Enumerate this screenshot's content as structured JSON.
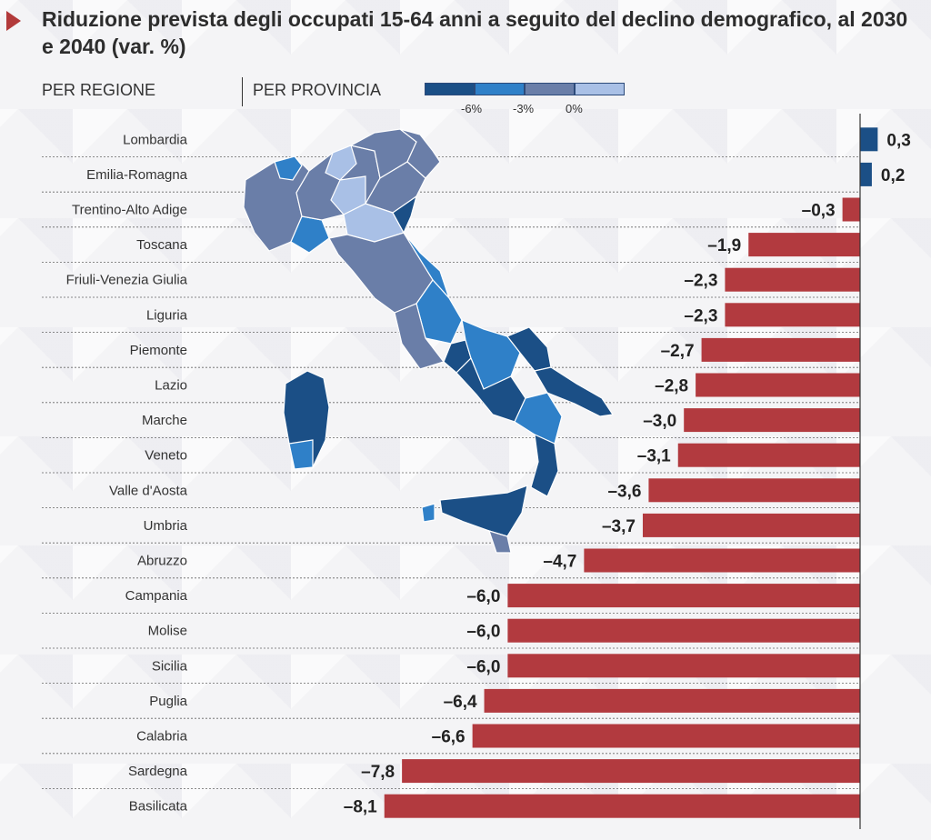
{
  "header": {
    "title": "Riduzione prevista degli occupati 15-64 anni a seguito del declino demografico, al 2030 e 2040 (var. %)",
    "tab_region": "PER REGIONE",
    "tab_province": "PER PROVINCIA"
  },
  "legend": {
    "colors": [
      "#1b4f86",
      "#2f80c8",
      "#6a7ea8",
      "#a9c0e6"
    ],
    "labels": [
      "-6%",
      "-3%",
      "0%"
    ]
  },
  "colors": {
    "positive": "#1b4f86",
    "negative": "#b23a3f",
    "marker": "#b23a3a"
  },
  "map": {
    "kind": "choropleth map of Italy by province",
    "dominant_colors": [
      "#6a7ea8",
      "#2f80c8",
      "#1b4f86",
      "#a9c0e6"
    ]
  },
  "chart_data": {
    "type": "bar",
    "orientation": "horizontal",
    "categories": [
      "Lombardia",
      "Emilia-Romagna",
      "Trentino-Alto Adige",
      "Toscana",
      "Friuli-Venezia Giulia",
      "Liguria",
      "Piemonte",
      "Lazio",
      "Marche",
      "Veneto",
      "Valle d'Aosta",
      "Umbria",
      "Abruzzo",
      "Campania",
      "Molise",
      "Sicilia",
      "Puglia",
      "Calabria",
      "Sardegna",
      "Basilicata"
    ],
    "values": [
      0.3,
      0.2,
      -0.3,
      -1.9,
      -2.3,
      -2.3,
      -2.7,
      -2.8,
      -3.0,
      -3.1,
      -3.6,
      -3.7,
      -4.7,
      -6.0,
      -6.0,
      -6.0,
      -6.4,
      -6.6,
      -7.8,
      -8.1
    ],
    "value_labels": [
      "0,3",
      "0,2",
      "–0,3",
      "–1,9",
      "–2,3",
      "–2,3",
      "–2,7",
      "–2,8",
      "–3,0",
      "–3,1",
      "–3,6",
      "–3,7",
      "–4,7",
      "–6,0",
      "–6,0",
      "–6,0",
      "–6,4",
      "–6,6",
      "–7,8",
      "–8,1"
    ],
    "grid": true,
    "legend": "top"
  }
}
